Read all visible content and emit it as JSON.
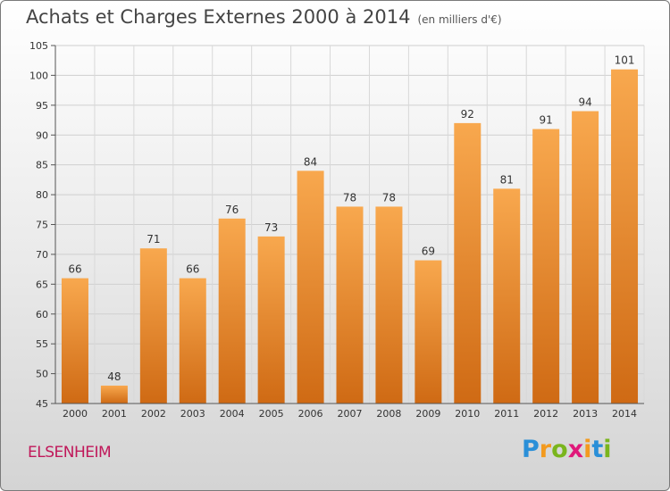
{
  "title": "Achats et Charges Externes 2000 à 2014",
  "subtitle": "(en milliers d'€)",
  "city": "ELSENHEIM",
  "logo": {
    "letters": [
      "P",
      "r",
      "o",
      "x",
      "i",
      "t",
      "i"
    ],
    "colors": [
      "#2a8fd8",
      "#f39a1e",
      "#7ab51d",
      "#e0187a",
      "#f39a1e",
      "#2a8fd8",
      "#7ab51d"
    ]
  },
  "chart_data": {
    "type": "bar",
    "categories": [
      "2000",
      "2001",
      "2002",
      "2003",
      "2004",
      "2005",
      "2006",
      "2007",
      "2008",
      "2009",
      "2010",
      "2011",
      "2012",
      "2013",
      "2014"
    ],
    "values": [
      66,
      48,
      71,
      66,
      76,
      73,
      84,
      78,
      78,
      69,
      92,
      81,
      91,
      94,
      101
    ],
    "data_labels": [
      "66",
      "48",
      "71",
      "66",
      "76",
      "73",
      "84",
      "78",
      "78",
      "69",
      "92",
      "81",
      "91",
      "94",
      "101"
    ],
    "y_ticks": [
      "45",
      "50",
      "55",
      "60",
      "65",
      "70",
      "75",
      "80",
      "85",
      "90",
      "95",
      "100",
      "105"
    ],
    "ylim": [
      45,
      105
    ],
    "grid": true,
    "bar_color_top": "#f8a84e",
    "bar_color_bottom": "#cf6a14"
  }
}
